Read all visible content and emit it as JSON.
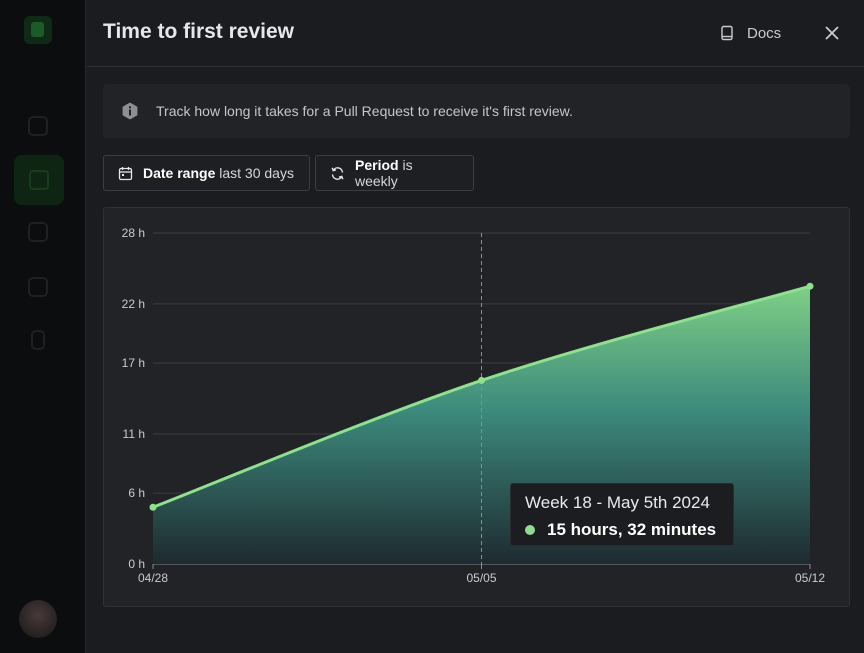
{
  "panel": {
    "title": "Time to first review",
    "docs_label": "Docs",
    "info_text": "Track how long it takes for a Pull Request to receive it's first review."
  },
  "filters": {
    "date_range_label": "Date range",
    "date_range_value": "last 30 days",
    "period_label": "Period",
    "period_value": "is weekly"
  },
  "colors": {
    "line": "#8fe08f",
    "area_top": "#7fcf86",
    "area_bottom": "#1e2a30",
    "grid": "#3a3c41"
  },
  "tooltip": {
    "title": "Week 18 - May 5th 2024",
    "value": "15 hours, 32 minutes"
  },
  "chart_data": {
    "type": "area",
    "x": [
      "04/28",
      "05/05",
      "05/12"
    ],
    "values": [
      4.8,
      15.53,
      23.5
    ],
    "ylabel": "",
    "xlabel": "",
    "yticks": [
      0,
      6,
      11,
      17,
      22,
      28
    ],
    "ytick_labels": [
      "0 h",
      "6 h",
      "11 h",
      "17 h",
      "22 h",
      "28 h"
    ],
    "ylim": [
      0,
      28
    ],
    "unit": "h",
    "highlighted_index": 1
  }
}
